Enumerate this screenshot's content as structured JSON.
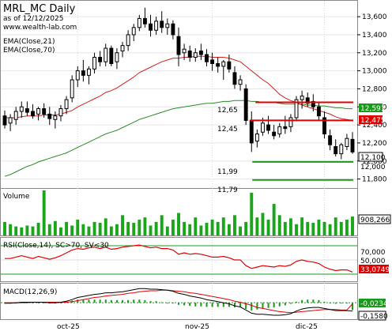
{
  "header": {
    "title": "MRL_MC Daily",
    "subtitle": "as of 12/12/2025",
    "url": "www.wealth-lab.com",
    "ema21_label": "EMA(Close,21)",
    "ema70_label": "EMA(Close,70)"
  },
  "colors": {
    "candle": "#000000",
    "ema21": "#d32222",
    "ema70": "#2b8a2b",
    "level_red": "#e00000",
    "level_green": "#1a9a1a",
    "volume": "#1aa51a",
    "rsi": "#e00000",
    "rsi_band": "#1a9a1a",
    "macd": "#000000",
    "macd_signal": "#e00000",
    "macd_hist": "#1a9a1a",
    "price_tag_green": "#1a9a1a",
    "price_tag_red": "#e00000"
  },
  "price_panel": {
    "y_ticks": [
      "13,600",
      "13,400",
      "13,200",
      "13,000",
      "12,800",
      "12,600",
      "12,400",
      "12,200",
      "12,000",
      "11,800"
    ],
    "level_labels": [
      "12,65",
      "12,45",
      "11,99",
      "11,79"
    ],
    "tags": [
      {
        "text": "12,591",
        "kind": "green"
      },
      {
        "text": "12,475",
        "kind": "red"
      },
      {
        "text": "12,100",
        "kind": "white"
      },
      {
        "text": "12,000",
        "kind": "plain"
      }
    ]
  },
  "volume_panel": {
    "label": "Volume",
    "tag": "908,266"
  },
  "rsi_panel": {
    "label": "RSI(Close,14), SC>70, SV<30",
    "y_ticks": [
      "70,000",
      "50,000"
    ],
    "tag": "33,0749"
  },
  "macd_panel": {
    "label": "MACD(12,26,9)",
    "tags": [
      "-0,0234",
      "-0,1580"
    ]
  },
  "x_axis": {
    "labels": [
      "oct-25",
      "nov-25",
      "dic-25"
    ]
  },
  "chart_data": {
    "type": "candlestick",
    "title": "MRL_MC Daily",
    "ylim": [
      11.7,
      13.75
    ],
    "levels": [
      12.65,
      12.45,
      11.99,
      11.79
    ],
    "x_labels": [
      "oct-25",
      "nov-25",
      "dic-25"
    ],
    "candles": [
      [
        12.5,
        12.56,
        12.36,
        12.4
      ],
      [
        12.42,
        12.52,
        12.33,
        12.48
      ],
      [
        12.46,
        12.6,
        12.4,
        12.55
      ],
      [
        12.55,
        12.66,
        12.48,
        12.6
      ],
      [
        12.58,
        12.66,
        12.5,
        12.54
      ],
      [
        12.55,
        12.63,
        12.47,
        12.5
      ],
      [
        12.52,
        12.6,
        12.45,
        12.58
      ],
      [
        12.58,
        12.64,
        12.48,
        12.52
      ],
      [
        12.52,
        12.6,
        12.4,
        12.47
      ],
      [
        12.46,
        12.55,
        12.36,
        12.5
      ],
      [
        12.5,
        12.62,
        12.44,
        12.58
      ],
      [
        12.58,
        12.72,
        12.52,
        12.68
      ],
      [
        12.7,
        12.95,
        12.65,
        12.9
      ],
      [
        12.9,
        13.05,
        12.82,
        13.0
      ],
      [
        13.0,
        13.12,
        12.88,
        12.95
      ],
      [
        12.95,
        13.05,
        12.85,
        13.02
      ],
      [
        13.02,
        13.2,
        12.97,
        13.15
      ],
      [
        13.15,
        13.22,
        13.05,
        13.1
      ],
      [
        13.1,
        13.3,
        13.05,
        13.25
      ],
      [
        13.25,
        13.28,
        13.05,
        13.08
      ],
      [
        13.1,
        13.25,
        13.02,
        13.2
      ],
      [
        13.22,
        13.32,
        13.15,
        13.28
      ],
      [
        13.28,
        13.45,
        13.22,
        13.4
      ],
      [
        13.4,
        13.52,
        13.33,
        13.48
      ],
      [
        13.48,
        13.62,
        13.44,
        13.58
      ],
      [
        13.58,
        13.7,
        13.48,
        13.52
      ],
      [
        13.52,
        13.62,
        13.38,
        13.45
      ],
      [
        13.45,
        13.6,
        13.4,
        13.55
      ],
      [
        13.55,
        13.66,
        13.42,
        13.48
      ],
      [
        13.48,
        13.58,
        13.4,
        13.52
      ],
      [
        13.52,
        13.56,
        13.35,
        13.4
      ],
      [
        13.38,
        13.48,
        13.05,
        13.18
      ],
      [
        13.2,
        13.3,
        13.12,
        13.24
      ],
      [
        13.22,
        13.28,
        13.1,
        13.15
      ],
      [
        13.15,
        13.25,
        13.1,
        13.2
      ],
      [
        13.22,
        13.3,
        13.12,
        13.18
      ],
      [
        13.18,
        13.24,
        13.05,
        13.1
      ],
      [
        13.12,
        13.2,
        13.0,
        13.08
      ],
      [
        13.08,
        13.15,
        12.98,
        13.05
      ],
      [
        13.05,
        13.12,
        12.9,
        13.1
      ],
      [
        13.1,
        13.18,
        12.98,
        13.02
      ],
      [
        12.98,
        13.05,
        12.8,
        12.85
      ],
      [
        12.85,
        12.95,
        12.78,
        12.9
      ],
      [
        12.8,
        12.85,
        12.4,
        12.45
      ],
      [
        12.45,
        12.55,
        12.1,
        12.2
      ],
      [
        12.22,
        12.35,
        12.15,
        12.3
      ],
      [
        12.32,
        12.48,
        12.28,
        12.42
      ],
      [
        12.4,
        12.5,
        12.3,
        12.34
      ],
      [
        12.32,
        12.4,
        12.24,
        12.28
      ],
      [
        12.3,
        12.42,
        12.26,
        12.38
      ],
      [
        12.38,
        12.5,
        12.3,
        12.36
      ],
      [
        12.38,
        12.52,
        12.32,
        12.48
      ],
      [
        12.48,
        12.72,
        12.44,
        12.68
      ],
      [
        12.68,
        12.78,
        12.58,
        12.72
      ],
      [
        12.7,
        12.76,
        12.6,
        12.64
      ],
      [
        12.66,
        12.74,
        12.55,
        12.6
      ],
      [
        12.6,
        12.65,
        12.45,
        12.5
      ],
      [
        12.48,
        12.55,
        12.25,
        12.3
      ],
      [
        12.28,
        12.35,
        12.12,
        12.18
      ],
      [
        12.16,
        12.24,
        12.05,
        12.08
      ],
      [
        12.08,
        12.2,
        12.02,
        12.18
      ],
      [
        12.16,
        12.3,
        12.12,
        12.25
      ],
      [
        12.24,
        12.32,
        12.08,
        12.1
      ]
    ],
    "ema21": [
      12.48,
      12.48,
      12.48,
      12.49,
      12.5,
      12.5,
      12.5,
      12.51,
      12.51,
      12.51,
      12.52,
      12.54,
      12.56,
      12.6,
      12.63,
      12.66,
      12.69,
      12.72,
      12.76,
      12.78,
      12.81,
      12.85,
      12.89,
      12.93,
      12.98,
      13.01,
      13.04,
      13.07,
      13.1,
      13.12,
      13.14,
      13.14,
      13.15,
      13.15,
      13.16,
      13.16,
      13.16,
      13.15,
      13.15,
      13.15,
      13.14,
      13.12,
      13.1,
      13.05,
      13.0,
      12.95,
      12.9,
      12.86,
      12.8,
      12.74,
      12.7,
      12.67,
      12.65,
      12.62,
      12.6,
      12.58,
      12.56,
      12.54,
      12.52,
      12.49,
      12.47,
      12.46,
      12.45
    ],
    "ema70": [
      11.83,
      11.85,
      11.88,
      11.91,
      11.94,
      11.96,
      11.99,
      12.01,
      12.03,
      12.05,
      12.07,
      12.09,
      12.12,
      12.15,
      12.18,
      12.21,
      12.24,
      12.27,
      12.3,
      12.32,
      12.34,
      12.37,
      12.4,
      12.43,
      12.46,
      12.48,
      12.5,
      12.52,
      12.54,
      12.56,
      12.58,
      12.59,
      12.6,
      12.61,
      12.62,
      12.63,
      12.64,
      12.64,
      12.65,
      12.66,
      12.66,
      12.67,
      12.67,
      12.67,
      12.66,
      12.66,
      12.65,
      12.65,
      12.65,
      12.64,
      12.63,
      12.63,
      12.63,
      12.63,
      12.62,
      12.62,
      12.61,
      12.61,
      12.6,
      12.59,
      12.59,
      12.58,
      12.58
    ],
    "volume": [
      0.3,
      0.25,
      0.2,
      0.18,
      0.22,
      0.2,
      0.28,
      1.0,
      0.25,
      0.32,
      0.18,
      0.3,
      0.22,
      0.35,
      0.25,
      0.2,
      0.3,
      0.28,
      0.38,
      0.2,
      0.25,
      0.45,
      0.3,
      0.28,
      0.35,
      0.4,
      0.22,
      0.3,
      0.45,
      0.2,
      0.35,
      0.5,
      0.3,
      0.25,
      0.4,
      0.22,
      0.28,
      0.35,
      0.3,
      0.4,
      0.25,
      0.45,
      0.2,
      0.3,
      0.95,
      0.4,
      0.5,
      0.35,
      0.7,
      0.45,
      0.3,
      0.38,
      0.25,
      0.4,
      0.3,
      0.28,
      0.35,
      0.3,
      0.25,
      0.4,
      0.3,
      0.35,
      0.42
    ],
    "rsi": [
      52,
      52,
      54,
      56,
      54,
      52,
      55,
      53,
      51,
      53,
      56,
      60,
      64,
      66,
      65,
      67,
      68,
      66,
      68,
      65,
      66,
      68,
      69,
      70,
      71,
      69,
      67,
      68,
      66,
      66,
      64,
      58,
      60,
      58,
      59,
      58,
      56,
      54,
      54,
      55,
      53,
      50,
      50,
      42,
      38,
      40,
      42,
      41,
      40,
      42,
      41,
      43,
      48,
      50,
      48,
      47,
      45,
      40,
      37,
      35,
      36,
      36,
      33
    ],
    "macd": [
      -0.01,
      -0.01,
      0.0,
      0.01,
      0.01,
      0.01,
      0.01,
      0.01,
      0.0,
      0.0,
      0.01,
      0.03,
      0.06,
      0.1,
      0.12,
      0.14,
      0.16,
      0.17,
      0.19,
      0.19,
      0.2,
      0.21,
      0.23,
      0.25,
      0.27,
      0.27,
      0.26,
      0.26,
      0.25,
      0.24,
      0.22,
      0.18,
      0.16,
      0.13,
      0.11,
      0.09,
      0.06,
      0.04,
      0.02,
      0.0,
      -0.02,
      -0.06,
      -0.08,
      -0.14,
      -0.2,
      -0.22,
      -0.22,
      -0.23,
      -0.24,
      -0.24,
      -0.23,
      -0.21,
      -0.16,
      -0.12,
      -0.1,
      -0.09,
      -0.09,
      -0.11,
      -0.13,
      -0.15,
      -0.15,
      -0.15,
      -0.16
    ],
    "macd_signal": [
      0.0,
      0.0,
      0.0,
      0.0,
      0.0,
      0.01,
      0.01,
      0.01,
      0.01,
      0.01,
      0.01,
      0.01,
      0.02,
      0.04,
      0.06,
      0.08,
      0.1,
      0.11,
      0.13,
      0.14,
      0.15,
      0.16,
      0.18,
      0.19,
      0.21,
      0.22,
      0.23,
      0.23,
      0.24,
      0.24,
      0.23,
      0.22,
      0.21,
      0.19,
      0.18,
      0.16,
      0.14,
      0.12,
      0.1,
      0.08,
      0.06,
      0.03,
      0.01,
      -0.02,
      -0.05,
      -0.09,
      -0.11,
      -0.13,
      -0.15,
      -0.17,
      -0.18,
      -0.19,
      -0.18,
      -0.17,
      -0.16,
      -0.15,
      -0.14,
      -0.13,
      -0.13,
      -0.13,
      -0.14,
      -0.14,
      -0.02
    ],
    "rsi_last": 33.0749,
    "volume_last": 908266
  }
}
